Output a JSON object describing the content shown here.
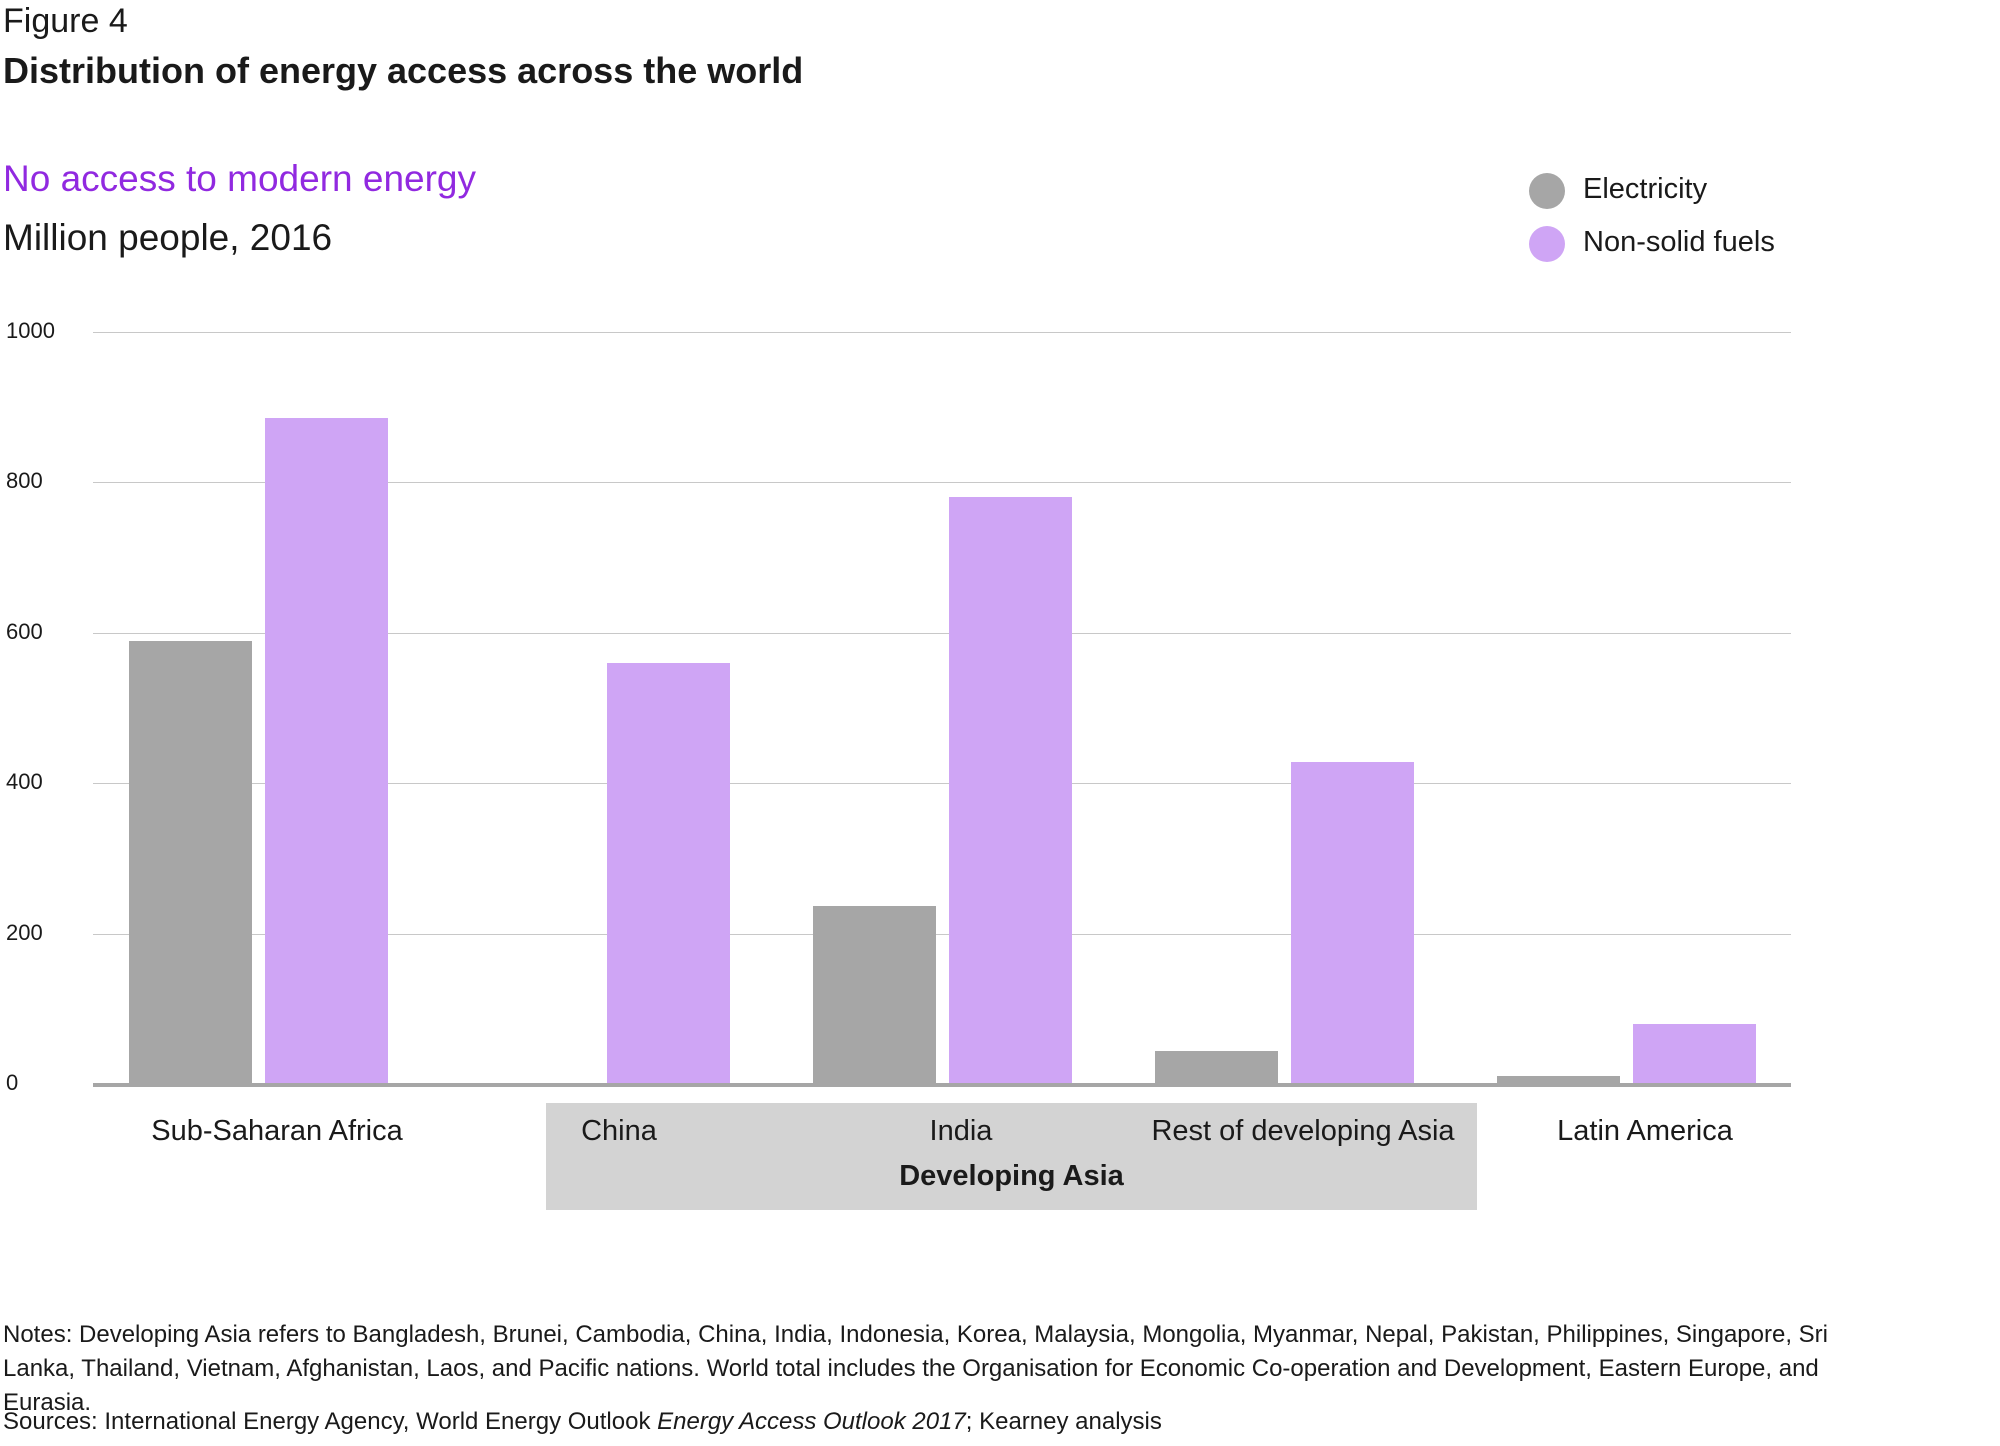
{
  "figure_label": "Figure 4",
  "title": "Distribution of energy access across the world",
  "chart_data": {
    "type": "bar",
    "title": "No access to modern energy",
    "ylabel": "Million people, 2016",
    "xlabel": "",
    "ylim": [
      0,
      1000
    ],
    "yticks": [
      "0",
      "200",
      "400",
      "600",
      "800",
      "1000"
    ],
    "categories": [
      "Sub-Saharan Africa",
      "China",
      "India",
      "Rest of developing Asia",
      "Latin America"
    ],
    "series": [
      {
        "name": "Electricity",
        "color": "#a6a6a6",
        "values": [
          589,
          0,
          237,
          44,
          10
        ]
      },
      {
        "name": "Non-solid fuels",
        "color": "#cfa5f5",
        "values": [
          885,
          560,
          781,
          428,
          80
        ]
      }
    ],
    "group_label": "Developing Asia",
    "legend_position": "top-right",
    "grid": true
  },
  "notes": "Notes: Developing Asia refers to Bangladesh, Brunei, Cambodia, China, India, Indonesia, Korea, Malaysia, Mongolia, Myanmar, Nepal, Pakistan, Philippines, Singapore, Sri Lanka, Thailand, Vietnam, Afghanistan, Laos, and Pacific nations. World total includes the Organisation for Economic Co-operation and Development, Eastern Europe, and Eurasia.",
  "sources_prefix": "Sources: International Energy Agency, World Energy Outlook ",
  "sources_italic": "Energy Access Outlook 2017",
  "sources_suffix": "; Kearney analysis"
}
